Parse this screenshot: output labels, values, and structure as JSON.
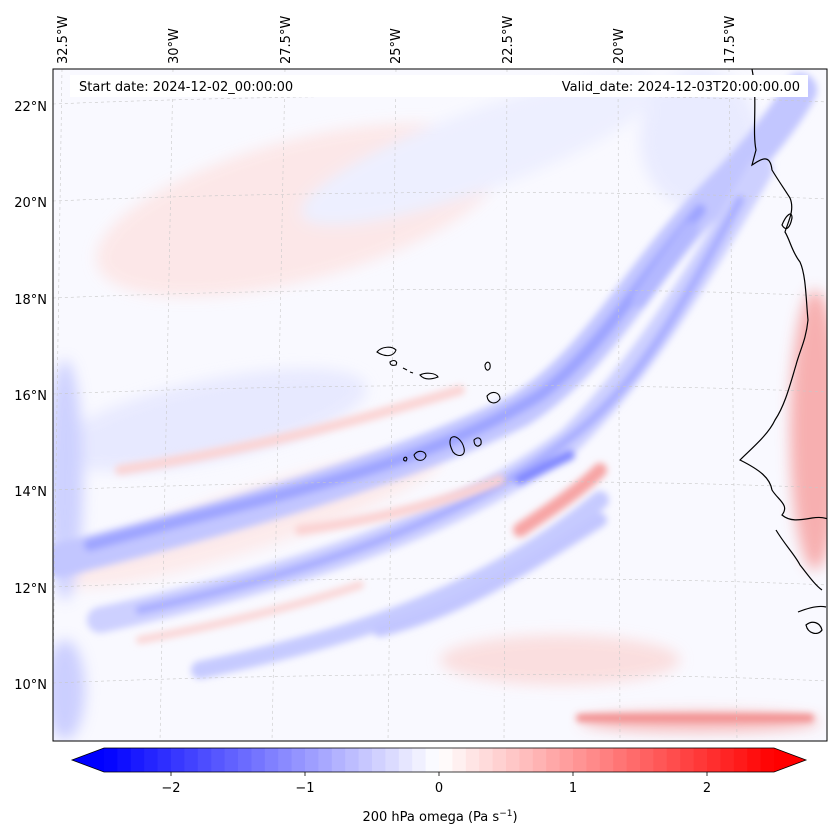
{
  "map": {
    "start_date": "Start date: 2024-12-02_00:00:00",
    "valid_date": "Valid_date: 2024-12-03T20:00:00.00",
    "lon_labels": [
      "32.5°W",
      "30°W",
      "27.5°W",
      "25°W",
      "22.5°W",
      "20°W",
      "17.5°W"
    ],
    "lat_labels": [
      "22°N",
      "20°N",
      "18°N",
      "16°N",
      "14°N",
      "12°N",
      "10°N"
    ],
    "variable": "200 hPa omega",
    "units": "Pa s",
    "units_exponent": "−1"
  },
  "colorbar": {
    "ticks": [
      "−2",
      "−1",
      "0",
      "1",
      "2"
    ],
    "range": [
      -2.6,
      2.6
    ],
    "colormap": "bwr",
    "low_color": "#0000ff",
    "mid_color": "#ffffff",
    "high_color": "#ff0000"
  }
}
